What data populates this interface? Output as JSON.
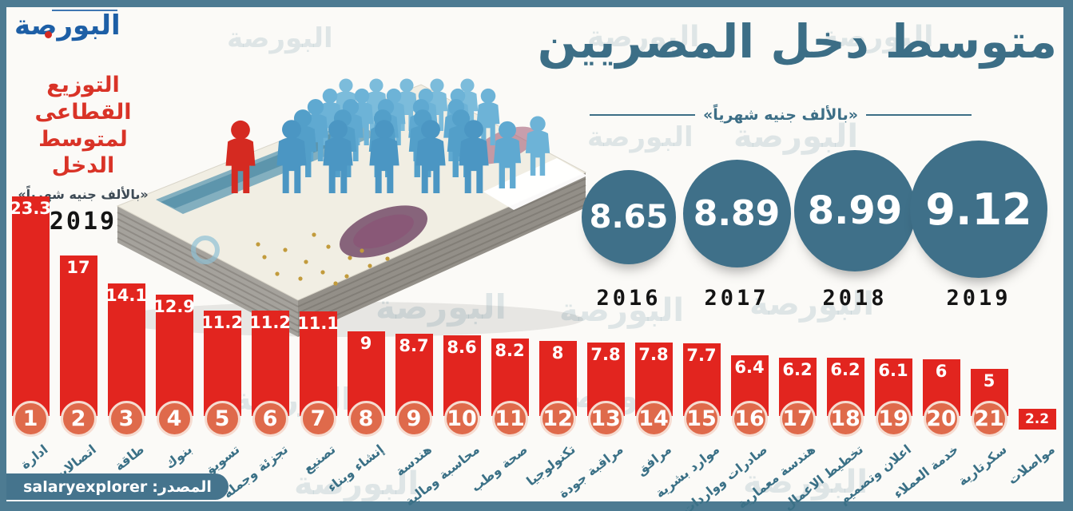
{
  "brand": {
    "logo_text": "البورصة",
    "watermark_text": "البورصة"
  },
  "header": {
    "title": "متوسط دخل المصريين",
    "unit_note": "«بالألف جنيه شهرياً»"
  },
  "sector_panel": {
    "heading_line1": "التوزيع القطاعى",
    "heading_line2": "لمتوسط الدخل",
    "unit_note": "«بالألف جنيه شهرياً»",
    "year": "2019"
  },
  "source": {
    "label": "المصدر:",
    "value": "salaryexplorer"
  },
  "colors": {
    "teal": "#3f7089",
    "bar_red": "#e2251f",
    "rank_circle": "#df6a4b",
    "frame": "#4d7b92",
    "heading_red": "#d93327"
  },
  "chart_data": [
    {
      "type": "bar",
      "name": "average-monthly-income-by-year",
      "title": "متوسط دخل المصريين",
      "unit": "«بالألف جنيه شهرياً»",
      "categories": [
        "2016",
        "2017",
        "2018",
        "2019"
      ],
      "values": [
        8.65,
        8.89,
        8.99,
        9.12
      ],
      "style": "sized-circles"
    },
    {
      "type": "bar",
      "name": "sector-distribution-of-average-income",
      "title": "التوزيع القطاعى لمتوسط الدخل",
      "unit": "«بالألف جنيه شهرياً»",
      "year": "2019",
      "categories": [
        "ادارة",
        "اتصالات",
        "طاقة",
        "بنوك",
        "تسويق",
        "تجزئة وجملة",
        "تصنيع",
        "إنشاء وبناء",
        "هندسة",
        "محاسبة ومالية",
        "صحة وطب",
        "تكنولوجيا",
        "مراقبة جودة",
        "مرافق",
        "موارد بشرية",
        "صادرات وواردات",
        "هندسة معمارية",
        "تخطيط الاعمال",
        "اعلان وتصميم",
        "خدمة العملاء",
        "سكرتارية",
        "مواصلات"
      ],
      "values": [
        23.3,
        17,
        14.1,
        12.9,
        11.2,
        11.2,
        11.1,
        9,
        8.7,
        8.6,
        8.2,
        8,
        7.8,
        7.8,
        7.7,
        6.4,
        6.2,
        6.2,
        6.1,
        6,
        5,
        2.2
      ],
      "ranks": [
        1,
        2,
        3,
        4,
        5,
        6,
        7,
        8,
        9,
        10,
        11,
        12,
        13,
        14,
        15,
        16,
        17,
        18,
        19,
        20,
        21,
        null
      ]
    }
  ]
}
